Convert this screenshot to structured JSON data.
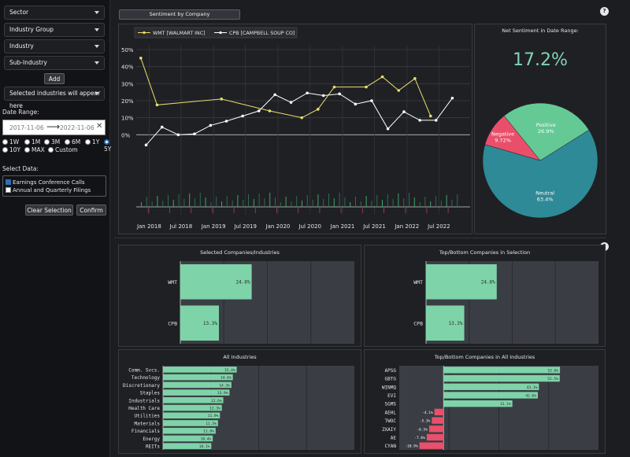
{
  "sidebar": {
    "selects": [
      "Sector",
      "Industry Group",
      "Industry",
      "Sub-Industry"
    ],
    "add_label": "Add",
    "selected_placeholder": "Selected industries will appear here",
    "date_range_label": "Date Range:",
    "start_date": "2017-11-06",
    "end_date": "2022-11-06",
    "ranges": [
      "1W",
      "1M",
      "3M",
      "6M",
      "1Y",
      "5Y",
      "10Y",
      "MAX",
      "Custom"
    ],
    "selected_range": "5Y",
    "select_data_label": "Select Data:",
    "sources": [
      {
        "label": "Earnings Conference Calls",
        "checked": true
      },
      {
        "label": "Annual and Quarterly Filings",
        "checked": false
      }
    ],
    "clear_label": "Clear Selection",
    "confirm_label": "Confirm"
  },
  "header": {
    "tab_label": "Sentiment by Company",
    "help": "?"
  },
  "chart_data": [
    {
      "type": "line",
      "series": [
        {
          "name": "WMT [WALMART INC]",
          "color": "#e8df6a",
          "points": [
            [
              "2017-11-15",
              45
            ],
            [
              "2018-02-15",
              17.5
            ],
            [
              "2019-02-15",
              21
            ],
            [
              "2019-11-15",
              14
            ],
            [
              "2020-05-15",
              10
            ],
            [
              "2020-08-15",
              15
            ],
            [
              "2020-11-15",
              28
            ],
            [
              "2021-05-15",
              28
            ],
            [
              "2021-08-15",
              34
            ],
            [
              "2021-11-15",
              26
            ],
            [
              "2022-02-15",
              33
            ],
            [
              "2022-05-15",
              11
            ]
          ]
        },
        {
          "name": "CPB [CAMPBELL SOUP CO]",
          "color": "#ffffff",
          "points": [
            [
              "2017-12-15",
              -6
            ],
            [
              "2018-03-15",
              4.5
            ],
            [
              "2018-06-15",
              0
            ],
            [
              "2018-09-15",
              0.5
            ],
            [
              "2018-12-15",
              5.5
            ],
            [
              "2019-03-15",
              8
            ],
            [
              "2019-06-15",
              11
            ],
            [
              "2019-09-15",
              14
            ],
            [
              "2019-12-15",
              23.5
            ],
            [
              "2020-03-15",
              19
            ],
            [
              "2020-06-15",
              24.5
            ],
            [
              "2020-09-15",
              23
            ],
            [
              "2020-12-15",
              24
            ],
            [
              "2021-03-15",
              18
            ],
            [
              "2021-06-15",
              20
            ],
            [
              "2021-09-15",
              3.5
            ],
            [
              "2021-12-15",
              13.5
            ],
            [
              "2022-03-15",
              8.5
            ],
            [
              "2022-06-15",
              8.5
            ],
            [
              "2022-09-15",
              21.5
            ]
          ]
        }
      ],
      "x_ticks": [
        "Jan 2018",
        "Jul 2018",
        "Jan 2019",
        "Jul 2019",
        "Jan 2020",
        "Jul 2020",
        "Jan 2021",
        "Jul 2021",
        "Jan 2022",
        "Jul 2022"
      ],
      "y_ticks": [
        "50%",
        "40%",
        "30%",
        "20%",
        "10%",
        "0%"
      ],
      "ylim": [
        -10,
        50
      ],
      "legend": "top-left"
    },
    {
      "type": "pie",
      "title": "Net Sentiment in Date Range:",
      "headline": "17.2%",
      "slices": [
        {
          "label": "Neutral",
          "value": 63.4,
          "display": "63.4%",
          "color": "#2e8a96"
        },
        {
          "label": "Negative",
          "value": 9.72,
          "display": "9.72%",
          "color": "#e94f6b"
        },
        {
          "label": "Positive",
          "value": 26.9,
          "display": "26.9%",
          "color": "#65c996"
        }
      ]
    },
    {
      "type": "bar",
      "title": "Selected Companies/Industries",
      "categories": [
        "WMT",
        "CPB"
      ],
      "values": [
        24.6,
        13.3
      ],
      "labels": [
        "24.6%",
        "13.3%"
      ],
      "xlim": [
        0,
        60
      ]
    },
    {
      "type": "bar",
      "title": "Top/Bottom Companies in Selection",
      "categories": [
        "WMT",
        "CPB"
      ],
      "values": [
        24.6,
        13.3
      ],
      "labels": [
        "24.6%",
        "13.3%"
      ],
      "xlim": [
        0,
        60
      ]
    },
    {
      "type": "bar",
      "title": "All Industries",
      "categories": [
        "Comm. Svcs.",
        "Technology",
        "Discretionary",
        "Staples",
        "Industrials",
        "Health Care",
        "Utilities",
        "Materials",
        "Financials",
        "Energy",
        "REITs"
      ],
      "values": [
        15.4,
        14.6,
        14.3,
        13.9,
        12.6,
        12.3,
        11.9,
        11.5,
        11.0,
        10.4,
        10.1
      ],
      "labels": [
        "15.4%",
        "14.6%",
        "14.3%",
        "13.9%",
        "12.6%",
        "12.3%",
        "11.9%",
        "11.5%",
        "11.0%",
        "10.4%",
        "10.1%"
      ],
      "xlim": [
        0,
        40
      ]
    },
    {
      "type": "bar",
      "title": "Top/Bottom Companies in All Industries",
      "categories": [
        "APSG",
        "GBTG",
        "WINMQ",
        "EVI",
        "SGMS",
        "AEHL",
        "TWOC",
        "ZXAIY",
        "AE",
        "CYAN"
      ],
      "values": [
        52.6,
        52.5,
        43.1,
        42.6,
        31.1,
        -4.1,
        -5.3,
        -6.5,
        -7.6,
        -10.9
      ],
      "labels": [
        "52.6%",
        "52.5%",
        "43.1%",
        "42.6%",
        "31.1%",
        "-4.1%",
        "-5.3%",
        "-6.5%",
        "-7.6%",
        "-10.9%"
      ],
      "xlim": [
        -20,
        70
      ]
    }
  ]
}
